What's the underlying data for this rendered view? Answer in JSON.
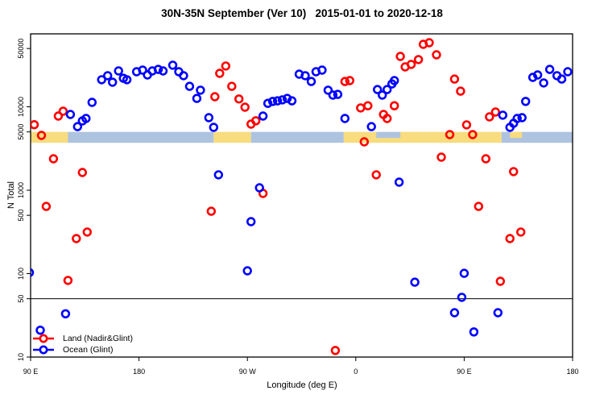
{
  "title": "30N-35N September (Ver 10)   2015-01-01 to 2020-12-18",
  "chart_data": {
    "type": "scatter",
    "title": "30N-35N September (Ver 10)   2015-01-01 to 2020-12-18",
    "xlabel": "Longitude (deg E)",
    "ylabel": "N Total",
    "x_axis": {
      "range_deg": [
        90,
        540
      ],
      "ticks": [
        {
          "deg": 90,
          "label": "90 E"
        },
        {
          "deg": 180,
          "label": "180"
        },
        {
          "deg": 270,
          "label": "90 W"
        },
        {
          "deg": 360,
          "label": "0"
        },
        {
          "deg": 450,
          "label": "90 E"
        },
        {
          "deg": 540,
          "label": "180"
        }
      ]
    },
    "y_axis": {
      "scale": "log",
      "range": [
        10,
        77600
      ],
      "tick_values": [
        10,
        50,
        100,
        500,
        1000,
        5000,
        10000,
        50000
      ],
      "tick_labels": [
        "10",
        "50",
        "100",
        "500",
        "1000",
        "5000",
        "10000",
        "50000"
      ]
    },
    "reference_line_n": 50,
    "legend": [
      {
        "label": "Land (Nadir&Glint)",
        "color": "#FF0000"
      },
      {
        "label": "Ocean (Glint)",
        "color": "#0000FF"
      }
    ],
    "surface_band": {
      "n_top": 5000,
      "n_bottom": 3700,
      "land_color": "#F8DC7E",
      "ocean_color": "#AEC3DF",
      "segments": [
        {
          "surface": "land",
          "from": 90,
          "to": 121
        },
        {
          "surface": "ocean",
          "from": 121,
          "to": 242
        },
        {
          "surface": "land",
          "from": 242,
          "to": 273
        },
        {
          "surface": "ocean",
          "from": 273,
          "to": 350
        },
        {
          "surface": "land",
          "from": 350,
          "to": 481
        },
        {
          "surface": "ocean",
          "from": 481,
          "to": 540
        }
      ],
      "partial_overlays": [
        {
          "surface": "ocean",
          "from": 377,
          "to": 397
        },
        {
          "surface": "land",
          "from": 488,
          "to": 498
        }
      ]
    },
    "series": [
      {
        "name": "Land (Nadir&Glint)",
        "color": "#FF0000",
        "marker": "open-circle",
        "points": [
          [
            93,
            6100
          ],
          [
            99,
            4540
          ],
          [
            103,
            640
          ],
          [
            109,
            2380
          ],
          [
            113,
            7750
          ],
          [
            117,
            8850
          ],
          [
            121,
            83
          ],
          [
            128,
            263
          ],
          [
            133,
            1630
          ],
          [
            137,
            315
          ],
          [
            240,
            560
          ],
          [
            243,
            13200
          ],
          [
            247,
            25200
          ],
          [
            252,
            30800
          ],
          [
            257,
            17600
          ],
          [
            263,
            12400
          ],
          [
            268,
            9900
          ],
          [
            273,
            6200
          ],
          [
            277,
            6800
          ],
          [
            283,
            915
          ],
          [
            343,
            12
          ],
          [
            351,
            20100
          ],
          [
            355,
            20600
          ],
          [
            364,
            9700
          ],
          [
            367,
            3800
          ],
          [
            370,
            10300
          ],
          [
            377,
            1530
          ],
          [
            383,
            8100
          ],
          [
            386,
            7240
          ],
          [
            392,
            10300
          ],
          [
            397,
            40200
          ],
          [
            401,
            30100
          ],
          [
            406,
            32200
          ],
          [
            412,
            36800
          ],
          [
            416,
            56100
          ],
          [
            421,
            58600
          ],
          [
            427,
            42000
          ],
          [
            431,
            2490
          ],
          [
            438,
            4640
          ],
          [
            442,
            21500
          ],
          [
            447,
            15400
          ],
          [
            452,
            6070
          ],
          [
            457,
            4640
          ],
          [
            462,
            640
          ],
          [
            468,
            2380
          ],
          [
            471,
            7570
          ],
          [
            476,
            8650
          ],
          [
            480,
            81
          ],
          [
            488,
            263
          ],
          [
            491,
            1670
          ],
          [
            497,
            315
          ]
        ]
      },
      {
        "name": "Ocean (Glint)",
        "color": "#0000FF",
        "marker": "open-circle",
        "points": [
          [
            89,
            103
          ],
          [
            98,
            21
          ],
          [
            119,
            33
          ],
          [
            123,
            8090
          ],
          [
            129,
            5790
          ],
          [
            133,
            6780
          ],
          [
            136,
            7240
          ],
          [
            141,
            11300
          ],
          [
            149,
            21100
          ],
          [
            154,
            23600
          ],
          [
            158,
            19700
          ],
          [
            163,
            26900
          ],
          [
            167,
            22000
          ],
          [
            170,
            21100
          ],
          [
            178,
            26300
          ],
          [
            183,
            27500
          ],
          [
            187,
            24100
          ],
          [
            191,
            26900
          ],
          [
            196,
            28100
          ],
          [
            200,
            26900
          ],
          [
            208,
            31500
          ],
          [
            213,
            26300
          ],
          [
            217,
            23600
          ],
          [
            222,
            17600
          ],
          [
            228,
            12600
          ],
          [
            231,
            15800
          ],
          [
            238,
            7410
          ],
          [
            242,
            5670
          ],
          [
            246,
            1530
          ],
          [
            270,
            108
          ],
          [
            273,
            420
          ],
          [
            280,
            1070
          ],
          [
            283,
            7750
          ],
          [
            287,
            11000
          ],
          [
            291,
            11600
          ],
          [
            295,
            11800
          ],
          [
            299,
            12100
          ],
          [
            303,
            12600
          ],
          [
            307,
            11800
          ],
          [
            313,
            24600
          ],
          [
            318,
            23600
          ],
          [
            323,
            20100
          ],
          [
            327,
            26300
          ],
          [
            332,
            27500
          ],
          [
            337,
            15800
          ],
          [
            341,
            13800
          ],
          [
            345,
            14100
          ],
          [
            351,
            7240
          ],
          [
            373,
            5790
          ],
          [
            378,
            16100
          ],
          [
            382,
            13800
          ],
          [
            386,
            16100
          ],
          [
            390,
            18800
          ],
          [
            392,
            20600
          ],
          [
            396,
            1250
          ],
          [
            409,
            79
          ],
          [
            442,
            34
          ],
          [
            448,
            52
          ],
          [
            450,
            101
          ],
          [
            458,
            20
          ],
          [
            478,
            34
          ],
          [
            482,
            7930
          ],
          [
            488,
            5670
          ],
          [
            491,
            6340
          ],
          [
            494,
            7240
          ],
          [
            498,
            7410
          ],
          [
            501,
            11600
          ],
          [
            507,
            22500
          ],
          [
            511,
            24100
          ],
          [
            516,
            19300
          ],
          [
            521,
            28100
          ],
          [
            527,
            23600
          ],
          [
            531,
            21500
          ],
          [
            536,
            26300
          ]
        ]
      }
    ]
  }
}
